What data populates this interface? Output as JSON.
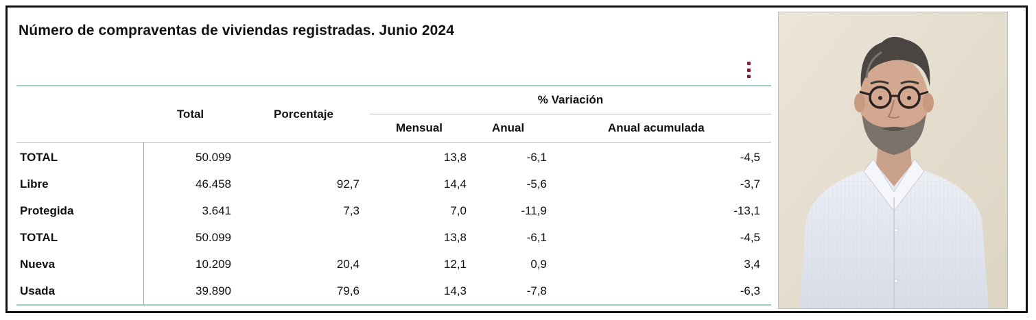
{
  "title": "Número de compraventas de viviendas registradas. Junio 2024",
  "menu_icon": "kebab-vertical-icon",
  "table": {
    "headers": {
      "total": "Total",
      "porcentaje": "Porcentaje",
      "variacion": "% Variación",
      "mensual": "Mensual",
      "anual": "Anual",
      "anual_acumulada": "Anual acumulada"
    },
    "rows": [
      {
        "label": "TOTAL",
        "total": "50.099",
        "porcentaje": "",
        "mensual": "13,8",
        "anual": "-6,1",
        "acumulada": "-4,5"
      },
      {
        "label": "Libre",
        "total": "46.458",
        "porcentaje": "92,7",
        "mensual": "14,4",
        "anual": "-5,6",
        "acumulada": "-3,7"
      },
      {
        "label": "Protegida",
        "total": "3.641",
        "porcentaje": "7,3",
        "mensual": "7,0",
        "anual": "-11,9",
        "acumulada": "-13,1"
      },
      {
        "label": "TOTAL",
        "total": "50.099",
        "porcentaje": "",
        "mensual": "13,8",
        "anual": "-6,1",
        "acumulada": "-4,5"
      },
      {
        "label": "Nueva",
        "total": "10.209",
        "porcentaje": "20,4",
        "mensual": "12,1",
        "anual": "0,9",
        "acumulada": "3,4"
      },
      {
        "label": "Usada",
        "total": "39.890",
        "porcentaje": "79,6",
        "mensual": "14,3",
        "anual": "-7,8",
        "acumulada": "-6,3"
      }
    ]
  },
  "colors": {
    "rule_accent": "#9ccbd0",
    "menu_icon": "#8b1a2b",
    "photo_wall": "#e8e0d2",
    "photo_shirt": "#e9ecf3"
  }
}
